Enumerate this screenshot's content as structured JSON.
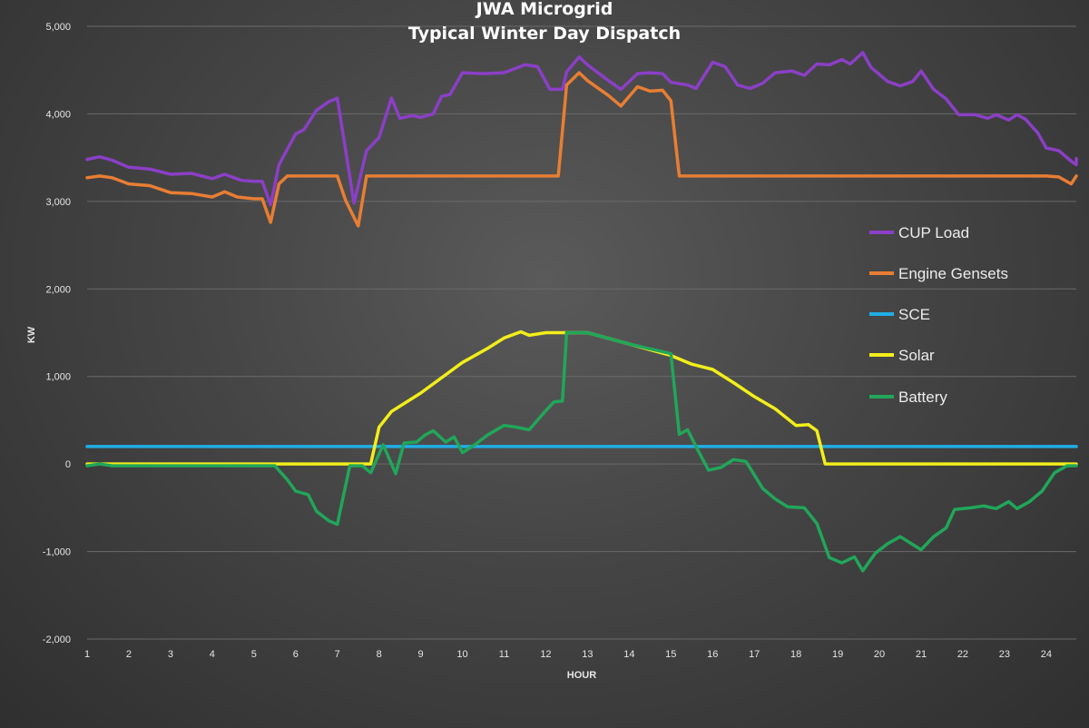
{
  "chart_data": {
    "type": "line",
    "title_line1": "JWA Microgrid",
    "title_line2": "Typical Winter Day Dispatch",
    "xlabel": "HOUR",
    "ylabel": "KW",
    "xlim": [
      1,
      24.9
    ],
    "ylim": [
      -2000,
      5000
    ],
    "y_ticks": [
      5000,
      4000,
      3000,
      2000,
      1000,
      0,
      -1000,
      -2000
    ],
    "y_tick_labels": [
      "5,000",
      "4,000",
      "3,000",
      "2,000",
      "1,000",
      "0",
      "-1,000",
      "-2,000"
    ],
    "x_ticks": [
      1,
      2,
      3,
      4,
      5,
      6,
      7,
      8,
      9,
      10,
      11,
      12,
      13,
      14,
      15,
      16,
      17,
      18,
      19,
      20,
      21,
      22,
      23,
      24
    ],
    "x_tick_labels": [
      "1",
      "2",
      "3",
      "4",
      "5",
      "6",
      "7",
      "8",
      "9",
      "10",
      "11",
      "12",
      "13",
      "14",
      "15",
      "16",
      "17",
      "18",
      "19",
      "20",
      "21",
      "22",
      "23",
      "24"
    ],
    "grid": "horizontal",
    "legend_position": "right",
    "series": [
      {
        "name": "CUP Load",
        "color": "#8b3fc6",
        "points": [
          [
            1,
            3480
          ],
          [
            1.3,
            3510
          ],
          [
            1.6,
            3470
          ],
          [
            2,
            3390
          ],
          [
            2.5,
            3370
          ],
          [
            3,
            3310
          ],
          [
            3.5,
            3320
          ],
          [
            4,
            3260
          ],
          [
            4.3,
            3310
          ],
          [
            4.7,
            3240
          ],
          [
            5,
            3230
          ],
          [
            5.2,
            3230
          ],
          [
            5.4,
            2960
          ],
          [
            5.6,
            3420
          ],
          [
            6,
            3770
          ],
          [
            6.2,
            3820
          ],
          [
            6.5,
            4040
          ],
          [
            6.8,
            4140
          ],
          [
            7,
            4180
          ],
          [
            7.2,
            3580
          ],
          [
            7.4,
            2980
          ],
          [
            7.7,
            3580
          ],
          [
            8,
            3730
          ],
          [
            8.3,
            4180
          ],
          [
            8.5,
            3950
          ],
          [
            8.8,
            3980
          ],
          [
            9,
            3960
          ],
          [
            9.3,
            4000
          ],
          [
            9.5,
            4200
          ],
          [
            9.7,
            4220
          ],
          [
            10,
            4470
          ],
          [
            10.5,
            4460
          ],
          [
            11,
            4470
          ],
          [
            11.5,
            4560
          ],
          [
            11.8,
            4540
          ],
          [
            12.1,
            4280
          ],
          [
            12.4,
            4280
          ],
          [
            12.5,
            4480
          ],
          [
            12.8,
            4650
          ],
          [
            13,
            4560
          ],
          [
            13.5,
            4380
          ],
          [
            13.8,
            4280
          ],
          [
            14.2,
            4460
          ],
          [
            14.5,
            4470
          ],
          [
            14.8,
            4460
          ],
          [
            15,
            4360
          ],
          [
            15.4,
            4330
          ],
          [
            15.6,
            4290
          ],
          [
            16,
            4590
          ],
          [
            16.3,
            4540
          ],
          [
            16.6,
            4330
          ],
          [
            16.9,
            4290
          ],
          [
            17.2,
            4350
          ],
          [
            17.5,
            4470
          ],
          [
            17.9,
            4490
          ],
          [
            18.2,
            4440
          ],
          [
            18.5,
            4570
          ],
          [
            18.8,
            4560
          ],
          [
            19.1,
            4620
          ],
          [
            19.3,
            4570
          ],
          [
            19.6,
            4700
          ],
          [
            19.8,
            4530
          ],
          [
            20.2,
            4370
          ],
          [
            20.5,
            4320
          ],
          [
            20.8,
            4370
          ],
          [
            21,
            4490
          ],
          [
            21.3,
            4280
          ],
          [
            21.6,
            4170
          ],
          [
            21.9,
            3990
          ],
          [
            22.3,
            3990
          ],
          [
            22.6,
            3950
          ],
          [
            22.8,
            3990
          ],
          [
            23.1,
            3930
          ],
          [
            23.3,
            3990
          ],
          [
            23.5,
            3940
          ],
          [
            23.8,
            3780
          ],
          [
            24,
            3610
          ],
          [
            24.3,
            3580
          ],
          [
            24.6,
            3460
          ],
          [
            24.8,
            3420
          ],
          [
            25,
            3490
          ]
        ]
      },
      {
        "name": "Engine Gensets",
        "color": "#e87e33",
        "points": [
          [
            1,
            3270
          ],
          [
            1.3,
            3290
          ],
          [
            1.6,
            3270
          ],
          [
            2,
            3200
          ],
          [
            2.5,
            3180
          ],
          [
            3,
            3100
          ],
          [
            3.5,
            3090
          ],
          [
            4,
            3050
          ],
          [
            4.3,
            3110
          ],
          [
            4.6,
            3050
          ],
          [
            5,
            3030
          ],
          [
            5.2,
            3030
          ],
          [
            5.4,
            2760
          ],
          [
            5.6,
            3200
          ],
          [
            5.8,
            3290
          ],
          [
            6.5,
            3290
          ],
          [
            7,
            3290
          ],
          [
            7.2,
            3010
          ],
          [
            7.5,
            2720
          ],
          [
            7.7,
            3290
          ],
          [
            8,
            3290
          ],
          [
            9,
            3290
          ],
          [
            10,
            3290
          ],
          [
            11,
            3290
          ],
          [
            12,
            3290
          ],
          [
            12.3,
            3290
          ],
          [
            12.5,
            4330
          ],
          [
            12.8,
            4470
          ],
          [
            13,
            4380
          ],
          [
            13.5,
            4210
          ],
          [
            13.8,
            4090
          ],
          [
            14.2,
            4310
          ],
          [
            14.5,
            4260
          ],
          [
            14.8,
            4270
          ],
          [
            15,
            4150
          ],
          [
            15.2,
            3290
          ],
          [
            16,
            3290
          ],
          [
            17,
            3290
          ],
          [
            18,
            3290
          ],
          [
            19,
            3290
          ],
          [
            20,
            3290
          ],
          [
            21,
            3290
          ],
          [
            22,
            3290
          ],
          [
            23,
            3290
          ],
          [
            24,
            3290
          ],
          [
            24.3,
            3280
          ],
          [
            24.6,
            3200
          ],
          [
            25,
            3290
          ]
        ]
      },
      {
        "name": "SCE",
        "color": "#1faee5",
        "points": [
          [
            1,
            200
          ],
          [
            25,
            200
          ]
        ]
      },
      {
        "name": "Solar",
        "color": "#f2ee1a",
        "points": [
          [
            1,
            0
          ],
          [
            5.5,
            0
          ],
          [
            6,
            0
          ],
          [
            7,
            0
          ],
          [
            7.7,
            0
          ],
          [
            7.8,
            0
          ],
          [
            8,
            420
          ],
          [
            8.3,
            600
          ],
          [
            9,
            810
          ],
          [
            10,
            1160
          ],
          [
            10.6,
            1320
          ],
          [
            11,
            1440
          ],
          [
            11.4,
            1510
          ],
          [
            11.6,
            1470
          ],
          [
            12,
            1500
          ],
          [
            12.5,
            1500
          ],
          [
            13,
            1500
          ],
          [
            14,
            1370
          ],
          [
            15,
            1240
          ],
          [
            15.5,
            1140
          ],
          [
            16,
            1080
          ],
          [
            16.5,
            930
          ],
          [
            17,
            770
          ],
          [
            17.5,
            630
          ],
          [
            18,
            440
          ],
          [
            18.3,
            450
          ],
          [
            18.5,
            380
          ],
          [
            18.7,
            0
          ],
          [
            19,
            0
          ],
          [
            20,
            0
          ],
          [
            21,
            0
          ],
          [
            22,
            0
          ],
          [
            23,
            0
          ],
          [
            24,
            0
          ],
          [
            24.5,
            0
          ],
          [
            25,
            0
          ]
        ]
      },
      {
        "name": "Battery",
        "color": "#21a65a",
        "points": [
          [
            1,
            -20
          ],
          [
            1.3,
            0
          ],
          [
            1.6,
            -20
          ],
          [
            2,
            -20
          ],
          [
            3,
            -20
          ],
          [
            4,
            -20
          ],
          [
            5,
            -20
          ],
          [
            5.5,
            -20
          ],
          [
            5.8,
            -180
          ],
          [
            6,
            -310
          ],
          [
            6.3,
            -350
          ],
          [
            6.5,
            -540
          ],
          [
            6.8,
            -650
          ],
          [
            7,
            -690
          ],
          [
            7.3,
            -20
          ],
          [
            7.6,
            -20
          ],
          [
            7.8,
            -100
          ],
          [
            8.1,
            220
          ],
          [
            8.4,
            -110
          ],
          [
            8.6,
            240
          ],
          [
            8.9,
            250
          ],
          [
            9.1,
            330
          ],
          [
            9.3,
            380
          ],
          [
            9.6,
            250
          ],
          [
            9.8,
            310
          ],
          [
            10,
            130
          ],
          [
            10.3,
            220
          ],
          [
            10.6,
            330
          ],
          [
            11,
            440
          ],
          [
            11.3,
            420
          ],
          [
            11.6,
            390
          ],
          [
            12,
            610
          ],
          [
            12.2,
            710
          ],
          [
            12.4,
            720
          ],
          [
            12.5,
            1500
          ],
          [
            13,
            1500
          ],
          [
            14,
            1370
          ],
          [
            15,
            1260
          ],
          [
            15.2,
            340
          ],
          [
            15.4,
            390
          ],
          [
            15.6,
            200
          ],
          [
            15.9,
            -70
          ],
          [
            16.2,
            -40
          ],
          [
            16.5,
            50
          ],
          [
            16.8,
            30
          ],
          [
            17.2,
            -280
          ],
          [
            17.5,
            -400
          ],
          [
            17.8,
            -490
          ],
          [
            18.2,
            -500
          ],
          [
            18.5,
            -680
          ],
          [
            18.8,
            -1070
          ],
          [
            19.1,
            -1130
          ],
          [
            19.4,
            -1060
          ],
          [
            19.6,
            -1220
          ],
          [
            19.9,
            -1020
          ],
          [
            20.2,
            -910
          ],
          [
            20.5,
            -830
          ],
          [
            20.8,
            -920
          ],
          [
            21,
            -980
          ],
          [
            21.3,
            -830
          ],
          [
            21.6,
            -730
          ],
          [
            21.8,
            -520
          ],
          [
            22.2,
            -500
          ],
          [
            22.5,
            -480
          ],
          [
            22.8,
            -510
          ],
          [
            23.1,
            -430
          ],
          [
            23.3,
            -510
          ],
          [
            23.6,
            -430
          ],
          [
            23.9,
            -310
          ],
          [
            24.2,
            -100
          ],
          [
            24.5,
            -20
          ],
          [
            24.8,
            -20
          ],
          [
            25,
            -20
          ]
        ]
      }
    ]
  }
}
